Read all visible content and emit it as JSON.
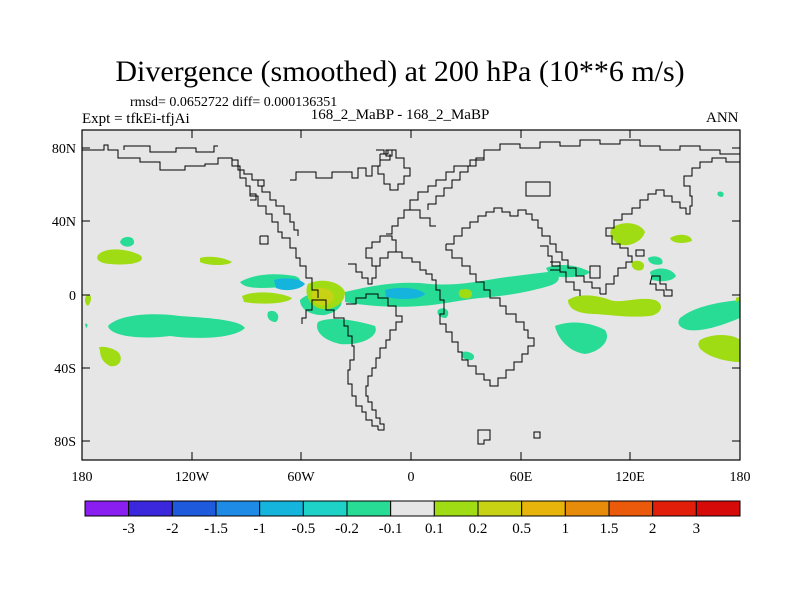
{
  "title": "Divergence (smoothed) at 200 hPa (10**6 m/s)",
  "stats_text": "rmsd= 0.0652722 diff= 0.000136351",
  "left_label": "Expt = tfkEi-tfjAi",
  "center_label": "168_2_MaBP - 168_2_MaBP",
  "right_label": "ANN",
  "lat_ticks": [
    "80N",
    "40N",
    "0",
    "40S",
    "80S"
  ],
  "lon_ticks": [
    "180",
    "120W",
    "60W",
    "0",
    "60E",
    "120E",
    "180"
  ],
  "colorbar": {
    "labels": [
      "-3",
      "-2",
      "-1.5",
      "-1",
      "-0.5",
      "-0.2",
      "-0.1",
      "0.1",
      "0.2",
      "0.5",
      "1",
      "1.5",
      "2",
      "3"
    ],
    "colors": [
      "#8a1ef0",
      "#3c28dc",
      "#1e5adc",
      "#1e8ce6",
      "#14b4dc",
      "#1ed2c8",
      "#28dc96",
      "#e6e6e6",
      "#a0dc14",
      "#c8d214",
      "#e6b40a",
      "#e68c0a",
      "#eb5a0a",
      "#e11e0a",
      "#d70a0a"
    ]
  },
  "colors": {
    "background_field": "#e6e6e6",
    "positive_weak": "#a0dc14",
    "negative_weak": "#28dc96",
    "negative_mid": "#14b4dc",
    "positive_mid": "#c8d214"
  }
}
